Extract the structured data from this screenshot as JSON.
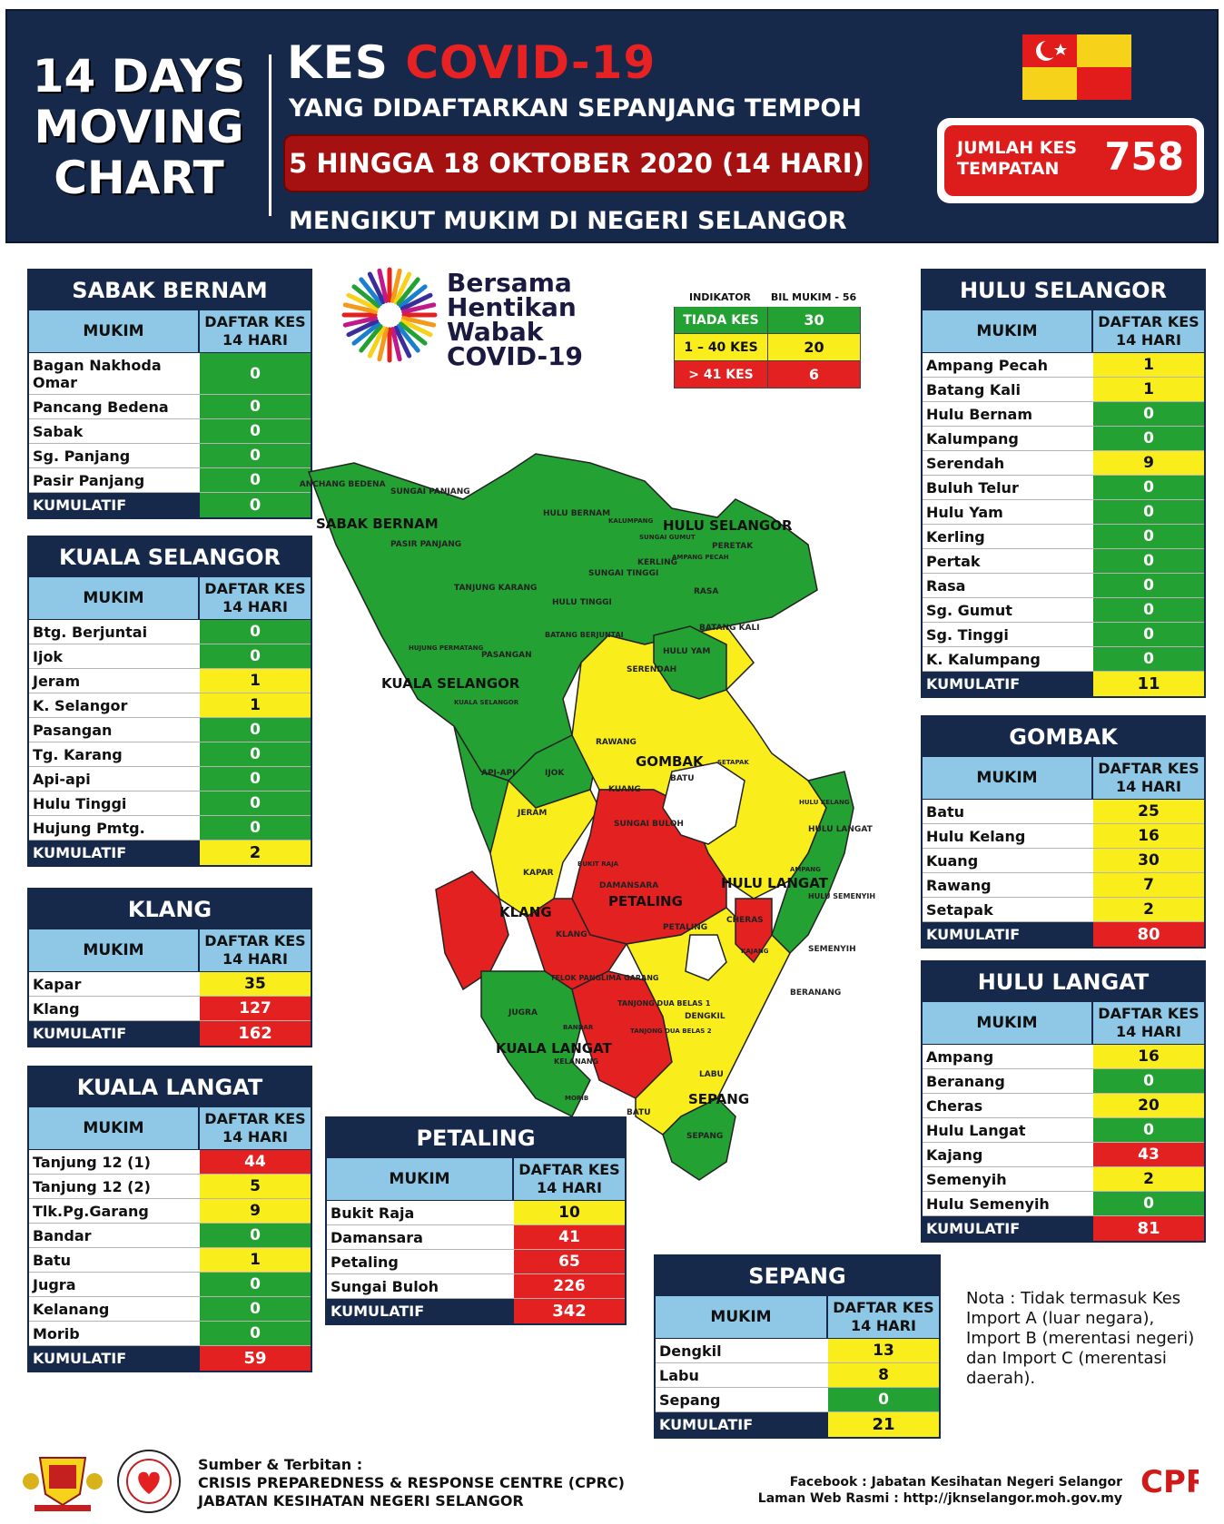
{
  "header": {
    "left_lines": [
      "14 DAYS",
      "MOVING",
      "CHART"
    ],
    "title_prefix": "KES ",
    "title_highlight": "COVID-19",
    "subtitle": "YANG DIDAFTARKAN SEPANJANG TEMPOH",
    "date_range": "5 HINGGA 18 OKTOBER 2020 (14 HARI)",
    "subtitle2": "MENGIKUT MUKIM DI NEGERI SELANGOR",
    "total_label_1": "JUMLAH KES",
    "total_label_2": "TEMPATAN",
    "total_value": "758"
  },
  "logo": {
    "lines": [
      "Bersama",
      "Hentikan",
      "Wabak",
      "COVID-19"
    ]
  },
  "indicator": {
    "head_left": "INDIKATOR",
    "head_right": "BIL MUKIM - 56",
    "rows": [
      {
        "label": "TIADA KES",
        "value": "30",
        "color": "#23a233"
      },
      {
        "label": "1 – 40 KES",
        "value": "20",
        "color": "#f9ee1c"
      },
      {
        "label": "> 41 KES",
        "value": "6",
        "color": "#e42121"
      }
    ]
  },
  "col_mukim": "MUKIM",
  "col_kes_1": "DAFTAR KES",
  "col_kes_2": "14 HARI",
  "total_label": "KUMULATIF",
  "districts": {
    "sabak_bernam": {
      "title": "SABAK BERNAM",
      "rows": [
        {
          "name": "Bagan Nakhoda Omar",
          "value": "0",
          "level": "g"
        },
        {
          "name": "Pancang Bedena",
          "value": "0",
          "level": "g"
        },
        {
          "name": "Sabak",
          "value": "0",
          "level": "g"
        },
        {
          "name": "Sg. Panjang",
          "value": "0",
          "level": "g"
        },
        {
          "name": "Pasir Panjang",
          "value": "0",
          "level": "g"
        }
      ],
      "total": "0",
      "total_level": "g"
    },
    "kuala_selangor": {
      "title": "KUALA SELANGOR",
      "rows": [
        {
          "name": "Btg. Berjuntai",
          "value": "0",
          "level": "g"
        },
        {
          "name": "Ijok",
          "value": "0",
          "level": "g"
        },
        {
          "name": "Jeram",
          "value": "1",
          "level": "y"
        },
        {
          "name": "K. Selangor",
          "value": "1",
          "level": "y"
        },
        {
          "name": "Pasangan",
          "value": "0",
          "level": "g"
        },
        {
          "name": "Tg. Karang",
          "value": "0",
          "level": "g"
        },
        {
          "name": "Api-api",
          "value": "0",
          "level": "g"
        },
        {
          "name": "Hulu Tinggi",
          "value": "0",
          "level": "g"
        },
        {
          "name": "Hujung Pmtg.",
          "value": "0",
          "level": "g"
        }
      ],
      "total": "2",
      "total_level": "y"
    },
    "klang": {
      "title": "KLANG",
      "rows": [
        {
          "name": "Kapar",
          "value": "35",
          "level": "y"
        },
        {
          "name": "Klang",
          "value": "127",
          "level": "r"
        }
      ],
      "total": "162",
      "total_level": "r"
    },
    "kuala_langat": {
      "title": "KUALA LANGAT",
      "rows": [
        {
          "name": "Tanjung 12 (1)",
          "value": "44",
          "level": "r"
        },
        {
          "name": "Tanjung 12 (2)",
          "value": "5",
          "level": "y"
        },
        {
          "name": "Tlk.Pg.Garang",
          "value": "9",
          "level": "y"
        },
        {
          "name": "Bandar",
          "value": "0",
          "level": "g"
        },
        {
          "name": "Batu",
          "value": "1",
          "level": "y"
        },
        {
          "name": "Jugra",
          "value": "0",
          "level": "g"
        },
        {
          "name": "Kelanang",
          "value": "0",
          "level": "g"
        },
        {
          "name": "Morib",
          "value": "0",
          "level": "g"
        }
      ],
      "total": "59",
      "total_level": "r"
    },
    "petaling": {
      "title": "PETALING",
      "rows": [
        {
          "name": "Bukit Raja",
          "value": "10",
          "level": "y"
        },
        {
          "name": "Damansara",
          "value": "41",
          "level": "r"
        },
        {
          "name": "Petaling",
          "value": "65",
          "level": "r"
        },
        {
          "name": "Sungai Buloh",
          "value": "226",
          "level": "r"
        }
      ],
      "total": "342",
      "total_level": "r"
    },
    "sepang": {
      "title": "SEPANG",
      "rows": [
        {
          "name": "Dengkil",
          "value": "13",
          "level": "y"
        },
        {
          "name": "Labu",
          "value": "8",
          "level": "y"
        },
        {
          "name": "Sepang",
          "value": "0",
          "level": "g"
        }
      ],
      "total": "21",
      "total_level": "y"
    },
    "hulu_selangor": {
      "title": "HULU SELANGOR",
      "rows": [
        {
          "name": "Ampang Pecah",
          "value": "1",
          "level": "y"
        },
        {
          "name": "Batang Kali",
          "value": "1",
          "level": "y"
        },
        {
          "name": "Hulu Bernam",
          "value": "0",
          "level": "g"
        },
        {
          "name": "Kalumpang",
          "value": "0",
          "level": "g"
        },
        {
          "name": "Serendah",
          "value": "9",
          "level": "y"
        },
        {
          "name": "Buluh Telur",
          "value": "0",
          "level": "g"
        },
        {
          "name": "Hulu Yam",
          "value": "0",
          "level": "g"
        },
        {
          "name": "Kerling",
          "value": "0",
          "level": "g"
        },
        {
          "name": "Pertak",
          "value": "0",
          "level": "g"
        },
        {
          "name": "Rasa",
          "value": "0",
          "level": "g"
        },
        {
          "name": "Sg. Gumut",
          "value": "0",
          "level": "g"
        },
        {
          "name": "Sg. Tinggi",
          "value": "0",
          "level": "g"
        },
        {
          "name": "K. Kalumpang",
          "value": "0",
          "level": "g"
        }
      ],
      "total": "11",
      "total_level": "y"
    },
    "gombak": {
      "title": "GOMBAK",
      "rows": [
        {
          "name": "Batu",
          "value": "25",
          "level": "y"
        },
        {
          "name": "Hulu Kelang",
          "value": "16",
          "level": "y"
        },
        {
          "name": "Kuang",
          "value": "30",
          "level": "y"
        },
        {
          "name": "Rawang",
          "value": "7",
          "level": "y"
        },
        {
          "name": "Setapak",
          "value": "2",
          "level": "y"
        }
      ],
      "total": "80",
      "total_level": "r"
    },
    "hulu_langat": {
      "title": "HULU LANGAT",
      "rows": [
        {
          "name": "Ampang",
          "value": "16",
          "level": "y"
        },
        {
          "name": "Beranang",
          "value": "0",
          "level": "g"
        },
        {
          "name": "Cheras",
          "value": "20",
          "level": "y"
        },
        {
          "name": "Hulu Langat",
          "value": "0",
          "level": "g"
        },
        {
          "name": "Kajang",
          "value": "43",
          "level": "r"
        },
        {
          "name": "Semenyih",
          "value": "2",
          "level": "y"
        },
        {
          "name": "Hulu Semenyih",
          "value": "0",
          "level": "g"
        }
      ],
      "total": "81",
      "total_level": "r"
    }
  },
  "map": {
    "district_labels": {
      "sabak_bernam": "SABAK BERNAM",
      "hulu_selangor": "HULU SELANGOR",
      "kuala_selangor": "KUALA SELANGOR",
      "gombak": "GOMBAK",
      "klang": "KLANG",
      "petaling": "PETALING",
      "hulu_langat": "HULU LANGAT",
      "kuala_langat": "KUALA LANGAT",
      "sepang": "SEPANG"
    },
    "mukim_labels": {
      "panchang_bedena": "PANCHANG BEDENA",
      "sungai_panjang": "SUNGAI PANJANG",
      "pasir_panjang": "PASIR PANJANG",
      "hulu_bernam": "HULU BERNAM",
      "kalumpang": "KALUMPANG",
      "sungai_gumut": "SUNGAI GUMUT",
      "peretak": "PERETAK",
      "kerling": "KERLING",
      "ampang_pecah": "AMPANG PECAH",
      "sungai_tinggi": "SUNGAI TINGGI",
      "rasa": "RASA",
      "tanjung_karang": "TANJUNG KARANG",
      "hulu_tinggi": "HULU TINGGI",
      "batang_kali": "BATANG KALI",
      "hujung_permatang": "HUJUNG PERMATANG",
      "pasangan": "PASANGAN",
      "batang_berjuntai": "BATANG BERJUNTAI",
      "hulu_yam": "HULU YAM",
      "serendah": "SERENDAH",
      "kuala_selangor": "KUALA SELANGOR",
      "rawang": "RAWANG",
      "api_api": "API-API",
      "ijok": "IJOK",
      "setapak": "SETAPAK",
      "batu": "BATU",
      "kuang": "KUANG",
      "hulu_kelang": "HULU KELANG",
      "jeram": "JERAM",
      "sungai_buloh": "SUNGAI BULOH",
      "hulu_langat": "HULU LANGAT",
      "kapar": "KAPAR",
      "bukit_raja": "BUKIT RAJA",
      "damansara": "DAMANSARA",
      "ampang": "AMPANG",
      "hulu_semenyih": "HULU SEMENYIH",
      "klang": "KLANG",
      "petaling": "PETALING",
      "cheras": "CHERAS",
      "kajang": "KAJANG",
      "semenyih": "SEMENYIH",
      "telok_panglima_garang": "TELOK PANGLIMA GARANG",
      "tanjong_dua_belas_1": "TANJONG DUA BELAS 1",
      "beranang": "BERANANG",
      "jugra": "JUGRA",
      "bandar": "BANDAR",
      "dengkil": "DENGKIL",
      "tanjong_dua_belas_2": "TANJONG DUA BELAS 2",
      "kelanang": "KELANANG",
      "morib": "MORIB",
      "labu": "LABU",
      "batu_kl": "BATU",
      "sepang": "SEPANG"
    }
  },
  "nota": "Nota : Tidak termasuk Kes Import A (luar negara), Import B (merentasi negeri) dan Import C (merentasi daerah).",
  "footer": {
    "source_1": "Sumber & Terbitan :",
    "source_2": "CRISIS PREPAREDNESS & RESPONSE CENTRE (CPRC)",
    "source_3": "JABATAN KESIHATAN NEGERI SELANGOR",
    "facebook": "Facebook : Jabatan Kesihatan Negeri Selangor",
    "website": "Laman Web Rasmi : http://jknselangor.moh.gov.my",
    "cprc_logo": "CPRC"
  },
  "colors": {
    "green": "#23a233",
    "yellow": "#f9ee1c",
    "red": "#e42121",
    "navy": "#17294a",
    "light_blue": "#8fc7e6"
  }
}
